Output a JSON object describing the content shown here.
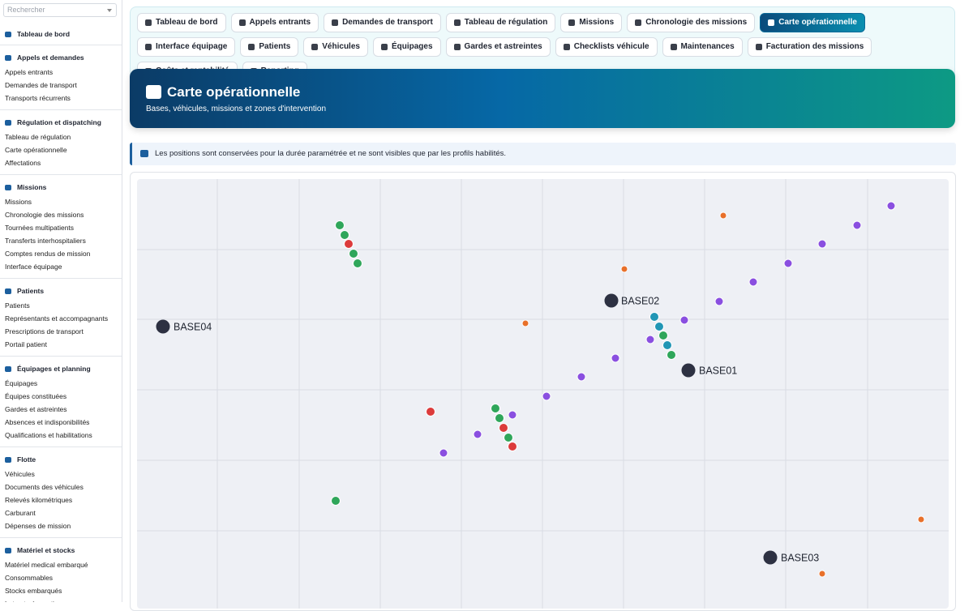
{
  "search": {
    "placeholder": "Rechercher"
  },
  "sidebar": [
    {
      "title": "Tableau de bord",
      "items": []
    },
    {
      "title": "Appels et demandes",
      "items": [
        "Appels entrants",
        "Demandes de transport",
        "Transports récurrents"
      ]
    },
    {
      "title": "Régulation et dispatching",
      "items": [
        "Tableau de régulation",
        "Carte opérationnelle",
        "Affectations"
      ]
    },
    {
      "title": "Missions",
      "items": [
        "Missions",
        "Chronologie des missions",
        "Tournées multipatients",
        "Transferts interhospitaliers",
        "Comptes rendus de mission",
        "Interface équipage"
      ]
    },
    {
      "title": "Patients",
      "items": [
        "Patients",
        "Représentants et accompagnants",
        "Prescriptions de transport",
        "Portail patient"
      ]
    },
    {
      "title": "Équipages et planning",
      "items": [
        "Équipages",
        "Équipes constituées",
        "Gardes et astreintes",
        "Absences et indisponibilités",
        "Qualifications et habilitations"
      ]
    },
    {
      "title": "Flotte",
      "items": [
        "Véhicules",
        "Documents des véhicules",
        "Relevés kilométriques",
        "Carburant",
        "Dépenses de mission"
      ]
    },
    {
      "title": "Matériel et stocks",
      "items": [
        "Matériel medical embarqué",
        "Consommables",
        "Stocks embarqués",
        "Lots et péremptions"
      ]
    }
  ],
  "tabs": [
    "Tableau de bord",
    "Appels entrants",
    "Demandes de transport",
    "Tableau de régulation",
    "Missions",
    "Chronologie des missions",
    "Carte opérationnelle",
    "Interface équipage",
    "Patients",
    "Véhicules",
    "Équipages",
    "Gardes et astreintes",
    "Checklists véhicule",
    "Maintenances",
    "Facturation des missions",
    "Coûts et rentabilité",
    "Reporting"
  ],
  "active_tab": "Carte opérationnelle",
  "header": {
    "title": "Carte opérationnelle",
    "subtitle": "Bases, véhicules, missions et zones d'intervention"
  },
  "notice": "Les positions sont conservées pour la durée paramétrée et ne sont visibles que par les profils habilités.",
  "map": {
    "bases": [
      "BASE02",
      "BASE04",
      "BASE01",
      "BASE03"
    ]
  }
}
